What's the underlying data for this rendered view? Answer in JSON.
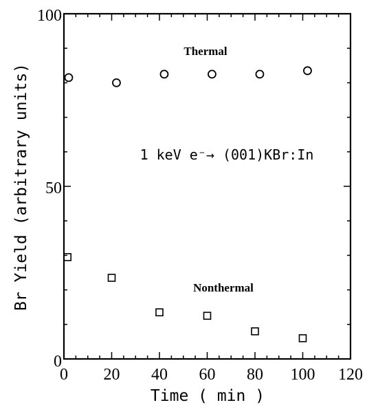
{
  "chart_data": {
    "type": "scatter",
    "title": "",
    "xlabel": "Time ( min )",
    "ylabel": "Br Yield (arbitrary units)",
    "xlim": [
      0,
      120
    ],
    "ylim": [
      0,
      100
    ],
    "x_ticks": [
      "0",
      "20",
      "40",
      "60",
      "80",
      "100",
      "120"
    ],
    "y_ticks": [
      "0",
      "50",
      "100"
    ],
    "grid": false,
    "series": [
      {
        "name": "Thermal",
        "marker": "circle",
        "points": [
          {
            "x": 2,
            "y": 81.5
          },
          {
            "x": 22,
            "y": 80
          },
          {
            "x": 42,
            "y": 82.5
          },
          {
            "x": 62,
            "y": 82.5
          },
          {
            "x": 82,
            "y": 82.5
          },
          {
            "x": 102,
            "y": 83.5
          }
        ]
      },
      {
        "name": "Nonthermal",
        "marker": "square",
        "points": [
          {
            "x": 1.5,
            "y": 29.5
          },
          {
            "x": 20,
            "y": 23.5
          },
          {
            "x": 40,
            "y": 13.5
          },
          {
            "x": 60,
            "y": 12.5
          },
          {
            "x": 80,
            "y": 8
          },
          {
            "x": 100,
            "y": 6
          }
        ]
      }
    ],
    "annotation": "1 keV e⁻→ (001)KBr:In"
  },
  "color_ink": "#000000"
}
